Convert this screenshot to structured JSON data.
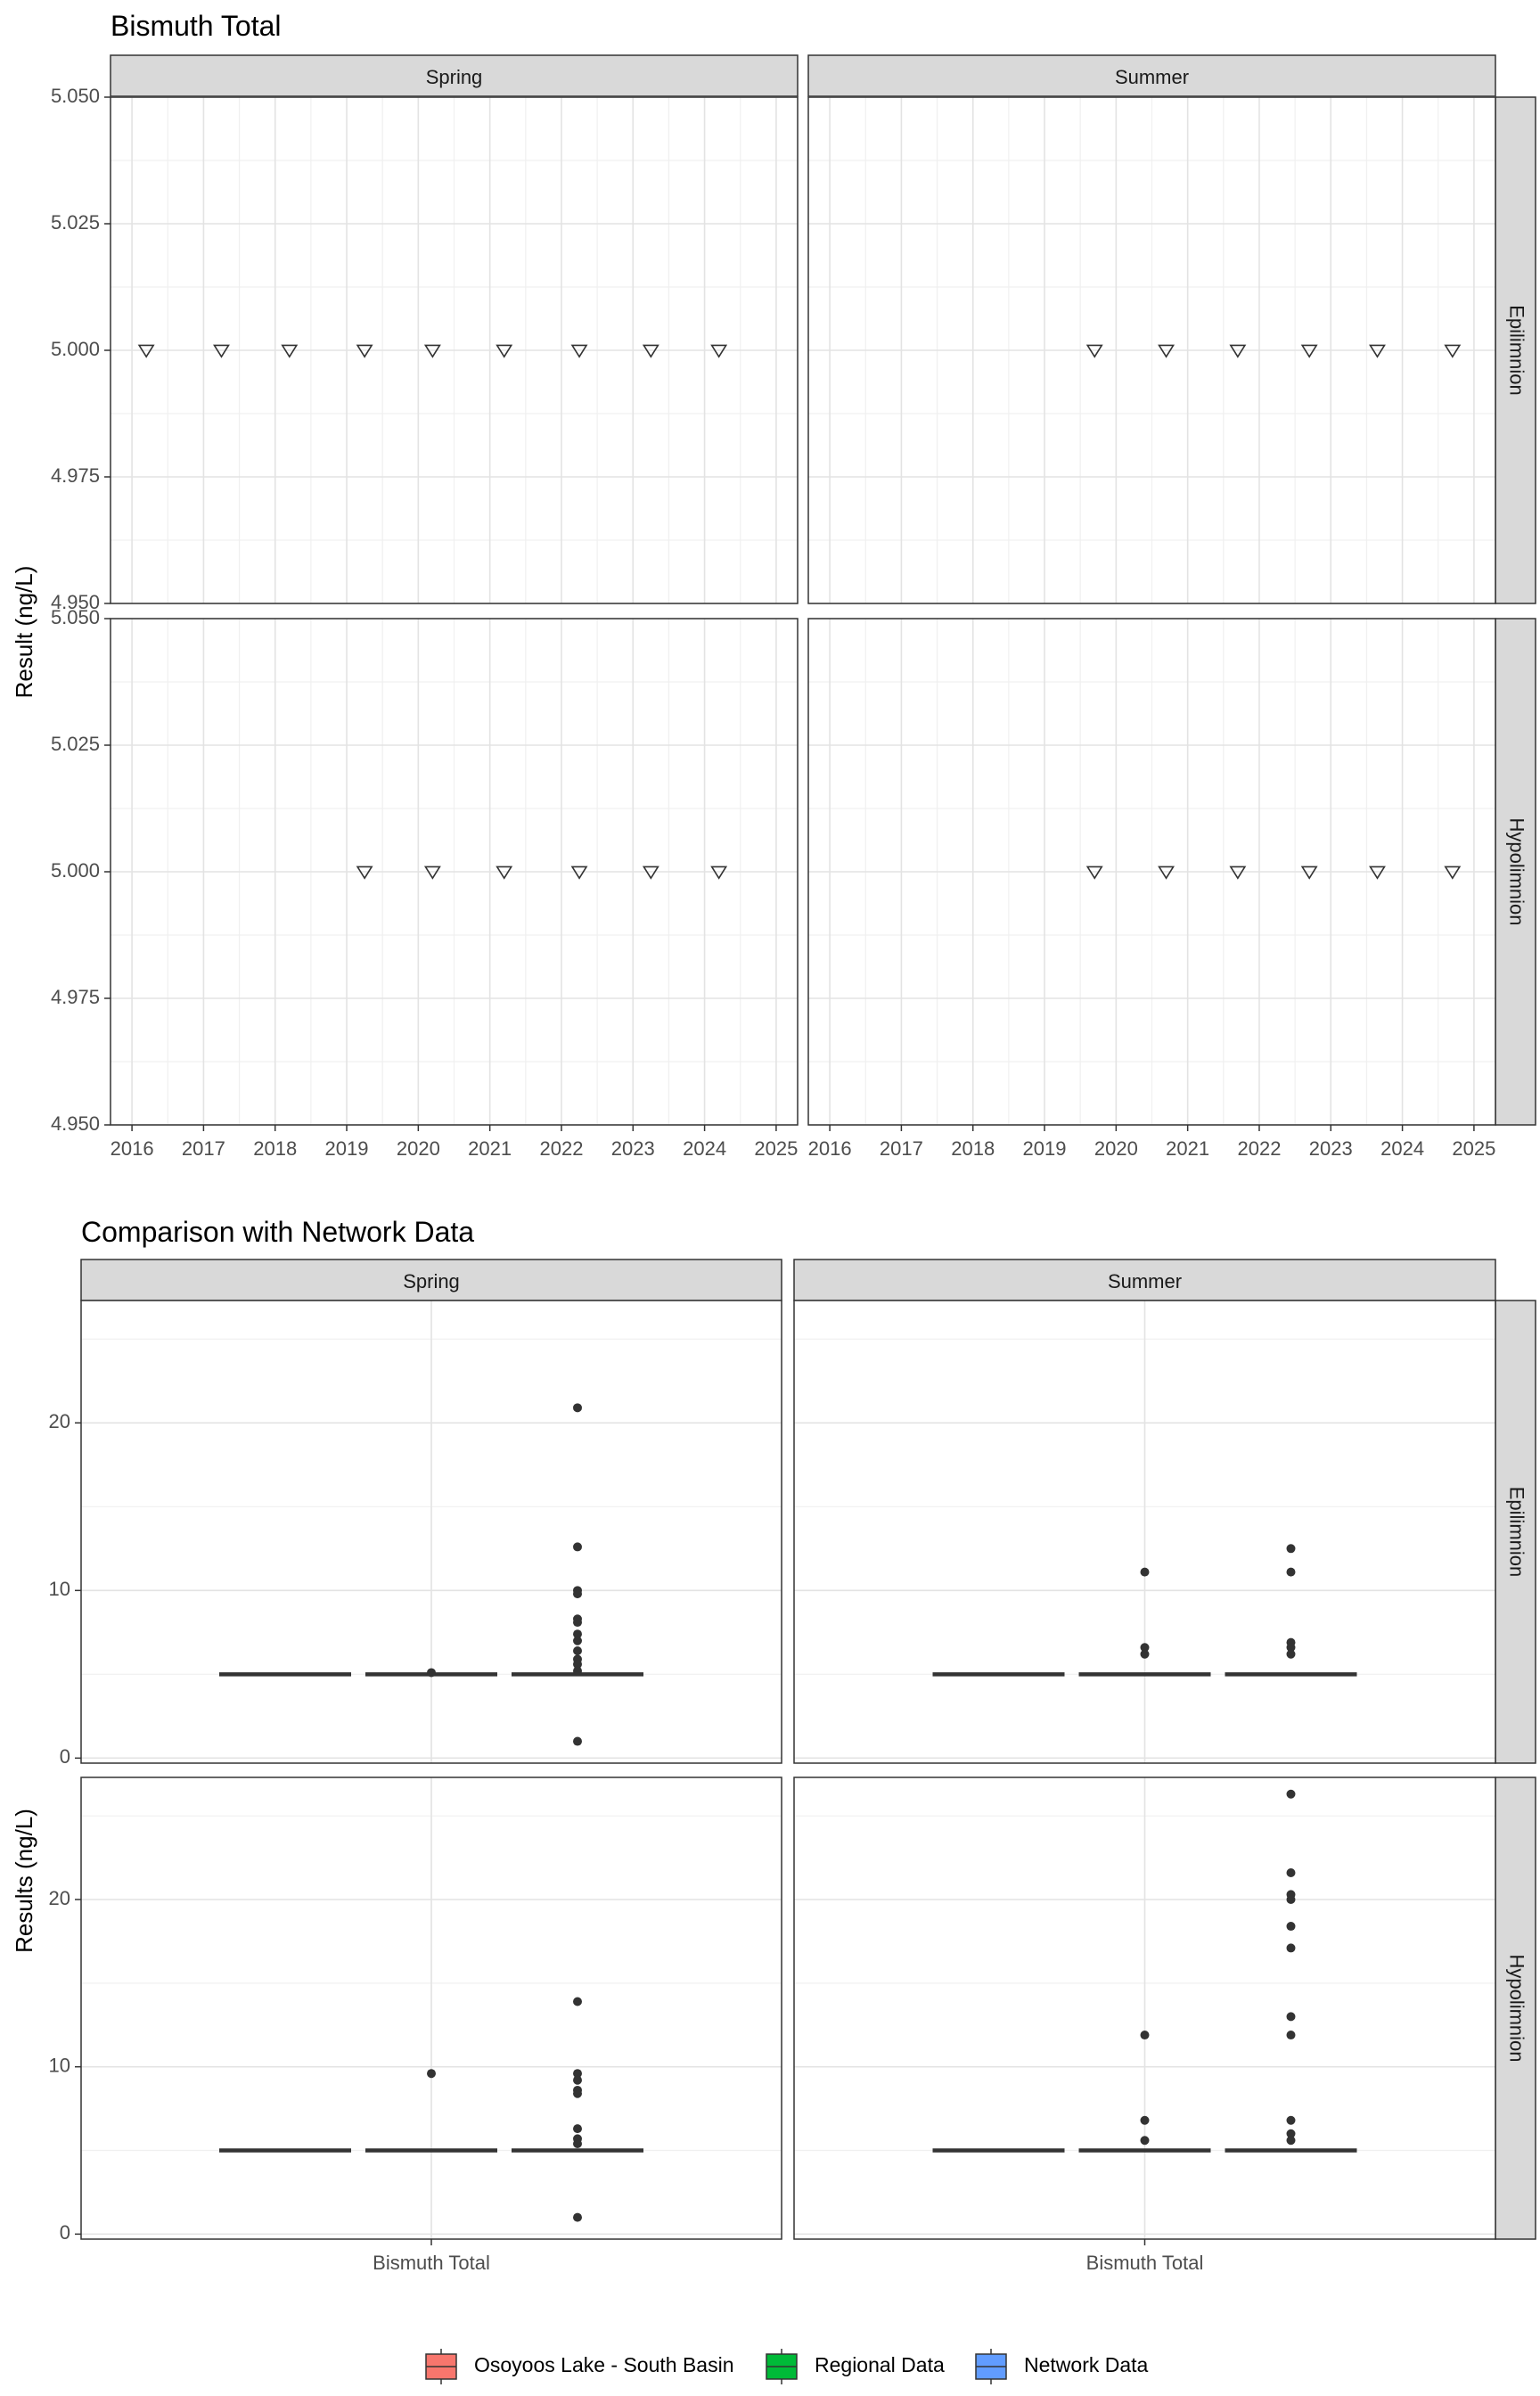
{
  "chart_data": [
    {
      "type": "scatter",
      "title": "Bismuth Total",
      "ylabel": "Result (ng/L)",
      "xlabel": "",
      "ylim": [
        4.95,
        5.05
      ],
      "xlim": [
        2015.7,
        2025.3
      ],
      "x_ticks": [
        2016,
        2017,
        2018,
        2019,
        2020,
        2021,
        2022,
        2023,
        2024,
        2025
      ],
      "y_tick_values": [
        4.95,
        4.975,
        5.0,
        5.025,
        5.05
      ],
      "y_tick_labels": [
        "4.950",
        "4.975",
        "5.000",
        "5.025",
        "5.050"
      ],
      "columns": [
        "Spring",
        "Summer"
      ],
      "rows": [
        "Epilimnion",
        "Hypolimnion"
      ],
      "marker": "open-down-triangle",
      "grid": true,
      "panels": [
        {
          "column": "Spring",
          "row": "Epilimnion",
          "points": [
            {
              "x": 2016.2,
              "y": 5.0
            },
            {
              "x": 2017.25,
              "y": 5.0
            },
            {
              "x": 2018.2,
              "y": 5.0
            },
            {
              "x": 2019.25,
              "y": 5.0
            },
            {
              "x": 2020.2,
              "y": 5.0
            },
            {
              "x": 2021.2,
              "y": 5.0
            },
            {
              "x": 2022.25,
              "y": 5.0
            },
            {
              "x": 2023.25,
              "y": 5.0
            },
            {
              "x": 2024.2,
              "y": 5.0
            }
          ]
        },
        {
          "column": "Summer",
          "row": "Epilimnion",
          "points": [
            {
              "x": 2019.7,
              "y": 5.0
            },
            {
              "x": 2020.7,
              "y": 5.0
            },
            {
              "x": 2021.7,
              "y": 5.0
            },
            {
              "x": 2022.7,
              "y": 5.0
            },
            {
              "x": 2023.65,
              "y": 5.0
            },
            {
              "x": 2024.7,
              "y": 5.0
            }
          ]
        },
        {
          "column": "Spring",
          "row": "Hypolimnion",
          "points": [
            {
              "x": 2019.25,
              "y": 5.0
            },
            {
              "x": 2020.2,
              "y": 5.0
            },
            {
              "x": 2021.2,
              "y": 5.0
            },
            {
              "x": 2022.25,
              "y": 5.0
            },
            {
              "x": 2023.25,
              "y": 5.0
            },
            {
              "x": 2024.2,
              "y": 5.0
            }
          ]
        },
        {
          "column": "Summer",
          "row": "Hypolimnion",
          "points": [
            {
              "x": 2019.7,
              "y": 5.0
            },
            {
              "x": 2020.7,
              "y": 5.0
            },
            {
              "x": 2021.7,
              "y": 5.0
            },
            {
              "x": 2022.7,
              "y": 5.0
            },
            {
              "x": 2023.65,
              "y": 5.0
            },
            {
              "x": 2024.7,
              "y": 5.0
            }
          ]
        }
      ]
    },
    {
      "type": "box",
      "title": "Comparison with Network Data",
      "ylabel": "Results (ng/L)",
      "xlabel": "",
      "category_label": "Bismuth Total",
      "ylim": [
        -0.3,
        27.3
      ],
      "y_ticks": [
        0,
        10,
        20
      ],
      "columns": [
        "Spring",
        "Summer"
      ],
      "rows": [
        "Epilimnion",
        "Hypolimnion"
      ],
      "series": [
        {
          "name": "Osoyoos Lake - South Basin",
          "color": "#F8766D"
        },
        {
          "name": "Regional Data",
          "color": "#00BA38"
        },
        {
          "name": "Network Data",
          "color": "#619CFF"
        }
      ],
      "legend_position": "bottom",
      "grid": true,
      "panels": [
        {
          "column": "Spring",
          "row": "Epilimnion",
          "boxes": [
            {
              "series": "Osoyoos Lake - South Basin",
              "median": 5,
              "outliers": []
            },
            {
              "series": "Regional Data",
              "median": 5,
              "outliers": [
                5.1
              ]
            },
            {
              "series": "Network Data",
              "median": 5,
              "outliers": [
                20.9,
                12.6,
                10.0,
                9.8,
                8.3,
                8.1,
                7.4,
                7.0,
                6.4,
                5.9,
                5.6,
                5.2,
                1.0
              ]
            }
          ]
        },
        {
          "column": "Summer",
          "row": "Epilimnion",
          "boxes": [
            {
              "series": "Osoyoos Lake - South Basin",
              "median": 5,
              "outliers": []
            },
            {
              "series": "Regional Data",
              "median": 5,
              "outliers": [
                11.1,
                6.6,
                6.2
              ]
            },
            {
              "series": "Network Data",
              "median": 5,
              "outliers": [
                12.5,
                11.1,
                6.9,
                6.6,
                6.2
              ]
            }
          ]
        },
        {
          "column": "Spring",
          "row": "Hypolimnion",
          "boxes": [
            {
              "series": "Osoyoos Lake - South Basin",
              "median": 5,
              "outliers": []
            },
            {
              "series": "Regional Data",
              "median": 5,
              "outliers": [
                9.6
              ]
            },
            {
              "series": "Network Data",
              "median": 5,
              "outliers": [
                13.9,
                9.6,
                9.2,
                8.6,
                8.4,
                6.3,
                5.7,
                5.4,
                1.0
              ]
            }
          ]
        },
        {
          "column": "Summer",
          "row": "Hypolimnion",
          "boxes": [
            {
              "series": "Osoyoos Lake - South Basin",
              "median": 5,
              "outliers": []
            },
            {
              "series": "Regional Data",
              "median": 5,
              "outliers": [
                11.9,
                6.8,
                5.6
              ]
            },
            {
              "series": "Network Data",
              "median": 5,
              "outliers": [
                26.3,
                21.6,
                20.3,
                20.0,
                18.4,
                17.1,
                13.0,
                11.9,
                6.8,
                6.0,
                5.6
              ]
            }
          ]
        }
      ]
    }
  ]
}
